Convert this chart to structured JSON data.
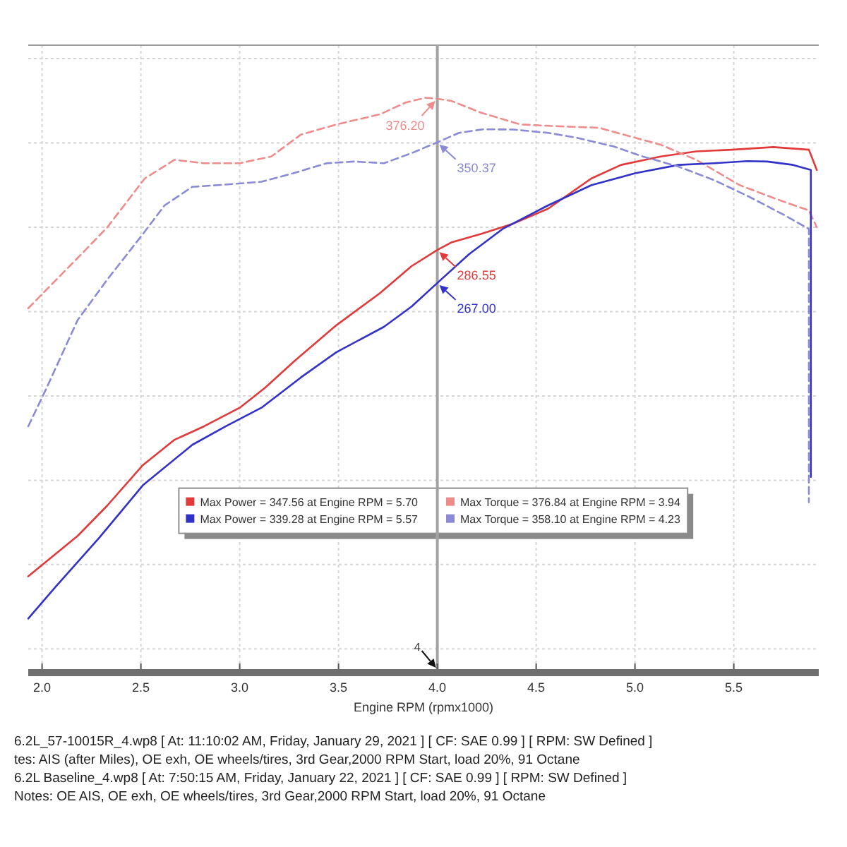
{
  "chart_data": {
    "type": "line",
    "xlabel": "Engine RPM (rpmx1000)",
    "xlim": [
      1.93,
      5.93
    ],
    "xticks": [
      {
        "value": 2,
        "label": "2.0"
      },
      2.5,
      {
        "value": 3,
        "label": "3.0"
      },
      3.5,
      {
        "value": 4,
        "label": "4.0"
      },
      4.5,
      {
        "value": 5,
        "label": "5.0"
      },
      5.5
    ],
    "ylim": [
      38,
      408
    ],
    "yticks": [
      {
        "value": 50,
        "label": null
      },
      {
        "value": 100,
        "label": null
      },
      {
        "value": 150,
        "label": null
      },
      {
        "value": 200,
        "label": null
      },
      {
        "value": 250,
        "label": null
      },
      {
        "value": 300,
        "label": null
      },
      {
        "value": 350,
        "label": null
      },
      {
        "value": 400,
        "label": null
      }
    ],
    "tick_labels": "x",
    "grid": true,
    "legend": "bottom",
    "series": [
      {
        "name": "Max Power = 347.56 at Engine RPM = 5.70",
        "color": "#e23a3a",
        "line_style": "solid",
        "x": [
          1.93,
          2.18,
          2.33,
          2.51,
          2.67,
          2.82,
          3.0,
          3.13,
          3.27,
          3.49,
          3.71,
          3.87,
          4.0,
          4.07,
          4.22,
          4.38,
          4.56,
          4.78,
          4.93,
          5.13,
          5.31,
          5.49,
          5.7,
          5.88,
          5.92
        ],
        "values": [
          93,
          117,
          135,
          159,
          174,
          182,
          193,
          205,
          220,
          242,
          261,
          277,
          286.55,
          291,
          296,
          302,
          311,
          329,
          337,
          342,
          345,
          346,
          347.56,
          346,
          334
        ],
        "value_labels": [
          null,
          null,
          null,
          null,
          null,
          null,
          null,
          null,
          null,
          null,
          null,
          null,
          "286.55",
          null,
          null,
          null,
          null,
          null,
          null,
          null,
          null,
          null,
          null,
          null,
          null
        ]
      },
      {
        "name": "Max Torque = 376.84 at Engine RPM = 3.94",
        "color": "#ee8c8c",
        "line_style": "dashed",
        "x": [
          1.93,
          2.19,
          2.33,
          2.52,
          2.67,
          2.82,
          3.0,
          3.16,
          3.31,
          3.49,
          3.71,
          3.84,
          3.94,
          4.0,
          4.07,
          4.22,
          4.42,
          4.6,
          4.82,
          4.91,
          5.13,
          5.31,
          5.53,
          5.71,
          5.88,
          5.92
        ],
        "values": [
          252,
          283,
          300,
          329,
          340,
          338,
          338,
          342,
          355,
          361,
          367,
          374,
          376.84,
          376.2,
          375,
          368,
          361,
          360,
          359,
          356,
          349,
          340,
          325,
          317,
          310,
          300
        ],
        "value_labels": [
          null,
          null,
          null,
          null,
          null,
          null,
          null,
          null,
          null,
          null,
          null,
          null,
          null,
          "376.20",
          null,
          null,
          null,
          null,
          null,
          null,
          null,
          null,
          null,
          null,
          null,
          null
        ]
      },
      {
        "name": "Max Power = 339.28 at Engine RPM = 5.57",
        "color": "#3232c8",
        "line_style": "solid",
        "x": [
          1.93,
          2.07,
          2.29,
          2.51,
          2.76,
          2.93,
          3.11,
          3.31,
          3.49,
          3.73,
          3.87,
          4.0,
          4.16,
          4.33,
          4.56,
          4.78,
          5.0,
          5.22,
          5.4,
          5.57,
          5.67,
          5.8,
          5.89,
          5.89
        ],
        "values": [
          68,
          87,
          116,
          147,
          171,
          182,
          193,
          211,
          226,
          241,
          253,
          267,
          284,
          299,
          313,
          325,
          332,
          337,
          338,
          339.28,
          339,
          337,
          334,
          152
        ],
        "value_labels": [
          null,
          null,
          null,
          null,
          null,
          null,
          null,
          null,
          null,
          null,
          null,
          "267.00",
          null,
          null,
          null,
          null,
          null,
          null,
          null,
          null,
          null,
          null,
          null,
          null
        ]
      },
      {
        "name": "Max Torque = 358.10 at Engine RPM = 4.23",
        "color": "#8a8ad6",
        "line_style": "dashed",
        "x": [
          1.93,
          2.02,
          2.18,
          2.33,
          2.51,
          2.62,
          2.76,
          2.89,
          3.11,
          3.27,
          3.44,
          3.58,
          3.73,
          3.87,
          4.0,
          4.11,
          4.23,
          4.38,
          4.56,
          4.71,
          4.89,
          5.04,
          5.22,
          5.4,
          5.58,
          5.76,
          5.88,
          5.88
        ],
        "values": [
          182,
          204,
          245,
          269,
          296,
          313,
          324,
          325,
          327,
          332,
          338,
          339,
          338,
          344,
          350.37,
          356,
          358.1,
          358,
          356,
          353,
          348,
          342,
          336,
          328,
          318,
          307,
          299,
          137
        ],
        "value_labels": [
          null,
          null,
          null,
          null,
          null,
          null,
          null,
          null,
          null,
          null,
          null,
          null,
          null,
          null,
          "350.37",
          null,
          null,
          null,
          null,
          null,
          null,
          null,
          null,
          null,
          null,
          null,
          null,
          null
        ]
      }
    ],
    "ref_lines": [
      {
        "axis": "x",
        "value": 4,
        "label": "4",
        "color": "#a3a3a3"
      }
    ],
    "annotations": [
      "6.2L_57-10015R_4.wp8 [ At: 11:10:02 AM, Friday, January 29, 2021 ] [ CF: SAE 0.99 ] [ RPM: SW Defined ]",
      "tes: AIS (after Miles), OE exh, OE wheels/tires, 3rd Gear,2000 RPM Start, load 20%, 91 Octane",
      "6.2L Baseline_4.wp8 [ At: 7:50:15 AM, Friday, January 22, 2021 ] [ CF: SAE 0.99 ] [ RPM: SW Defined ]",
      "Notes: OE AIS, OE exh, OE wheels/tires, 3rd Gear,2000 RPM Start, load 20%, 91 Octane"
    ]
  }
}
